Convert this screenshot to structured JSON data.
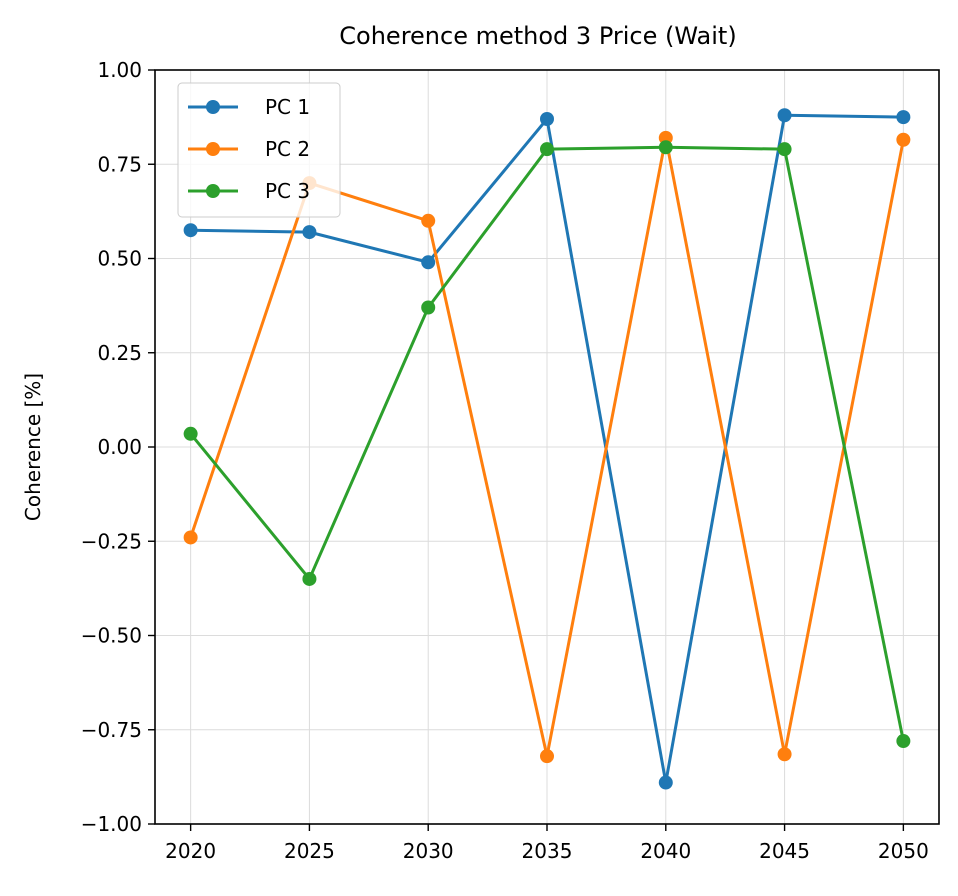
{
  "chart_data": {
    "type": "line",
    "title": "Coherence method 3 Price (Wait)",
    "xlabel": "",
    "ylabel": "Coherence [%]",
    "x": [
      2020,
      2025,
      2030,
      2035,
      2040,
      2045,
      2050
    ],
    "xticks": [
      "2020",
      "2025",
      "2030",
      "2035",
      "2040",
      "2045",
      "2050"
    ],
    "yticks": [
      "1.00",
      "0.75",
      "0.50",
      "0.25",
      "0.00",
      "−0.25",
      "−0.50",
      "−0.75",
      "−1.00"
    ],
    "ytick_values": [
      1.0,
      0.75,
      0.5,
      0.25,
      0.0,
      -0.25,
      -0.5,
      -0.75,
      -1.0
    ],
    "xlim": [
      2018.5,
      2051.5
    ],
    "ylim": [
      -1.0,
      1.0
    ],
    "grid": true,
    "legend_position": "upper-left",
    "series": [
      {
        "name": "PC 1",
        "color": "#1f77b4",
        "values": [
          0.575,
          0.57,
          0.49,
          0.87,
          -0.89,
          0.88,
          0.875
        ]
      },
      {
        "name": "PC 2",
        "color": "#ff7f0e",
        "values": [
          -0.24,
          0.7,
          0.6,
          -0.82,
          0.82,
          -0.815,
          0.815
        ]
      },
      {
        "name": "PC 3",
        "color": "#2ca02c",
        "values": [
          0.035,
          -0.35,
          0.37,
          0.79,
          0.795,
          0.79,
          -0.78
        ]
      }
    ]
  }
}
